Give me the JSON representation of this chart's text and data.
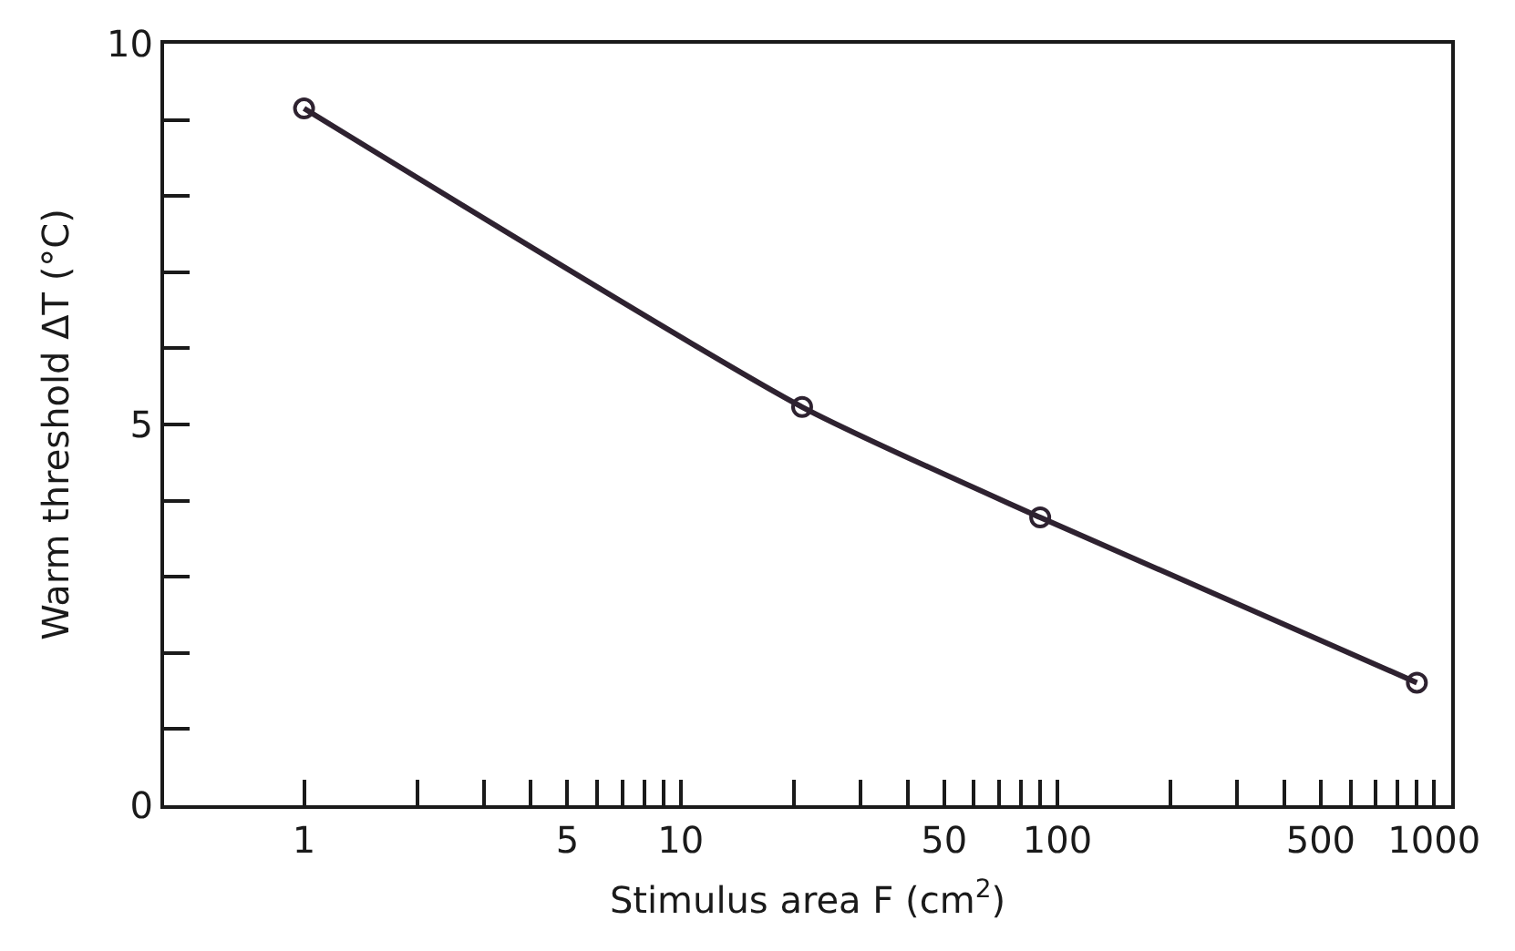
{
  "chart_data": {
    "type": "line",
    "xlabel": "Stimulus area F (cm$^{2}$)",
    "ylabel": "Warm threshold ΔT (°C)",
    "x": [
      1,
      21,
      90,
      900
    ],
    "series": [
      {
        "color": "#2e2230",
        "values": [
          9.15,
          5.23,
          3.78,
          1.61
        ]
      }
    ],
    "marker": "circle",
    "line_style": "solid",
    "log": "x",
    "xlim": [
      0.425,
      1110
    ],
    "ylim": [
      0,
      10
    ],
    "xticks": [
      1,
      {
        "value": 2,
        "label": null
      },
      {
        "value": 3,
        "label": null
      },
      {
        "value": 4,
        "label": null
      },
      5,
      {
        "value": 6,
        "label": null
      },
      {
        "value": 7,
        "label": null
      },
      {
        "value": 8,
        "label": null
      },
      {
        "value": 9,
        "label": null
      },
      10,
      {
        "value": 20,
        "label": null
      },
      {
        "value": 30,
        "label": null
      },
      {
        "value": 40,
        "label": null
      },
      50,
      {
        "value": 60,
        "label": null
      },
      {
        "value": 70,
        "label": null
      },
      {
        "value": 80,
        "label": null
      },
      {
        "value": 90,
        "label": null
      },
      100,
      {
        "value": 200,
        "label": null
      },
      {
        "value": 300,
        "label": null
      },
      {
        "value": 400,
        "label": null
      },
      500,
      {
        "value": 600,
        "label": null
      },
      {
        "value": 700,
        "label": null
      },
      {
        "value": 800,
        "label": null
      },
      {
        "value": 900,
        "label": null
      },
      1000
    ],
    "yticks": [
      0,
      {
        "value": 1,
        "label": null
      },
      {
        "value": 2,
        "label": null
      },
      {
        "value": 3,
        "label": null
      },
      {
        "value": 4,
        "label": null
      },
      5,
      {
        "value": 6,
        "label": null
      },
      {
        "value": 7,
        "label": null
      },
      {
        "value": 8,
        "label": null
      },
      {
        "value": 9,
        "label": null
      },
      10
    ]
  }
}
